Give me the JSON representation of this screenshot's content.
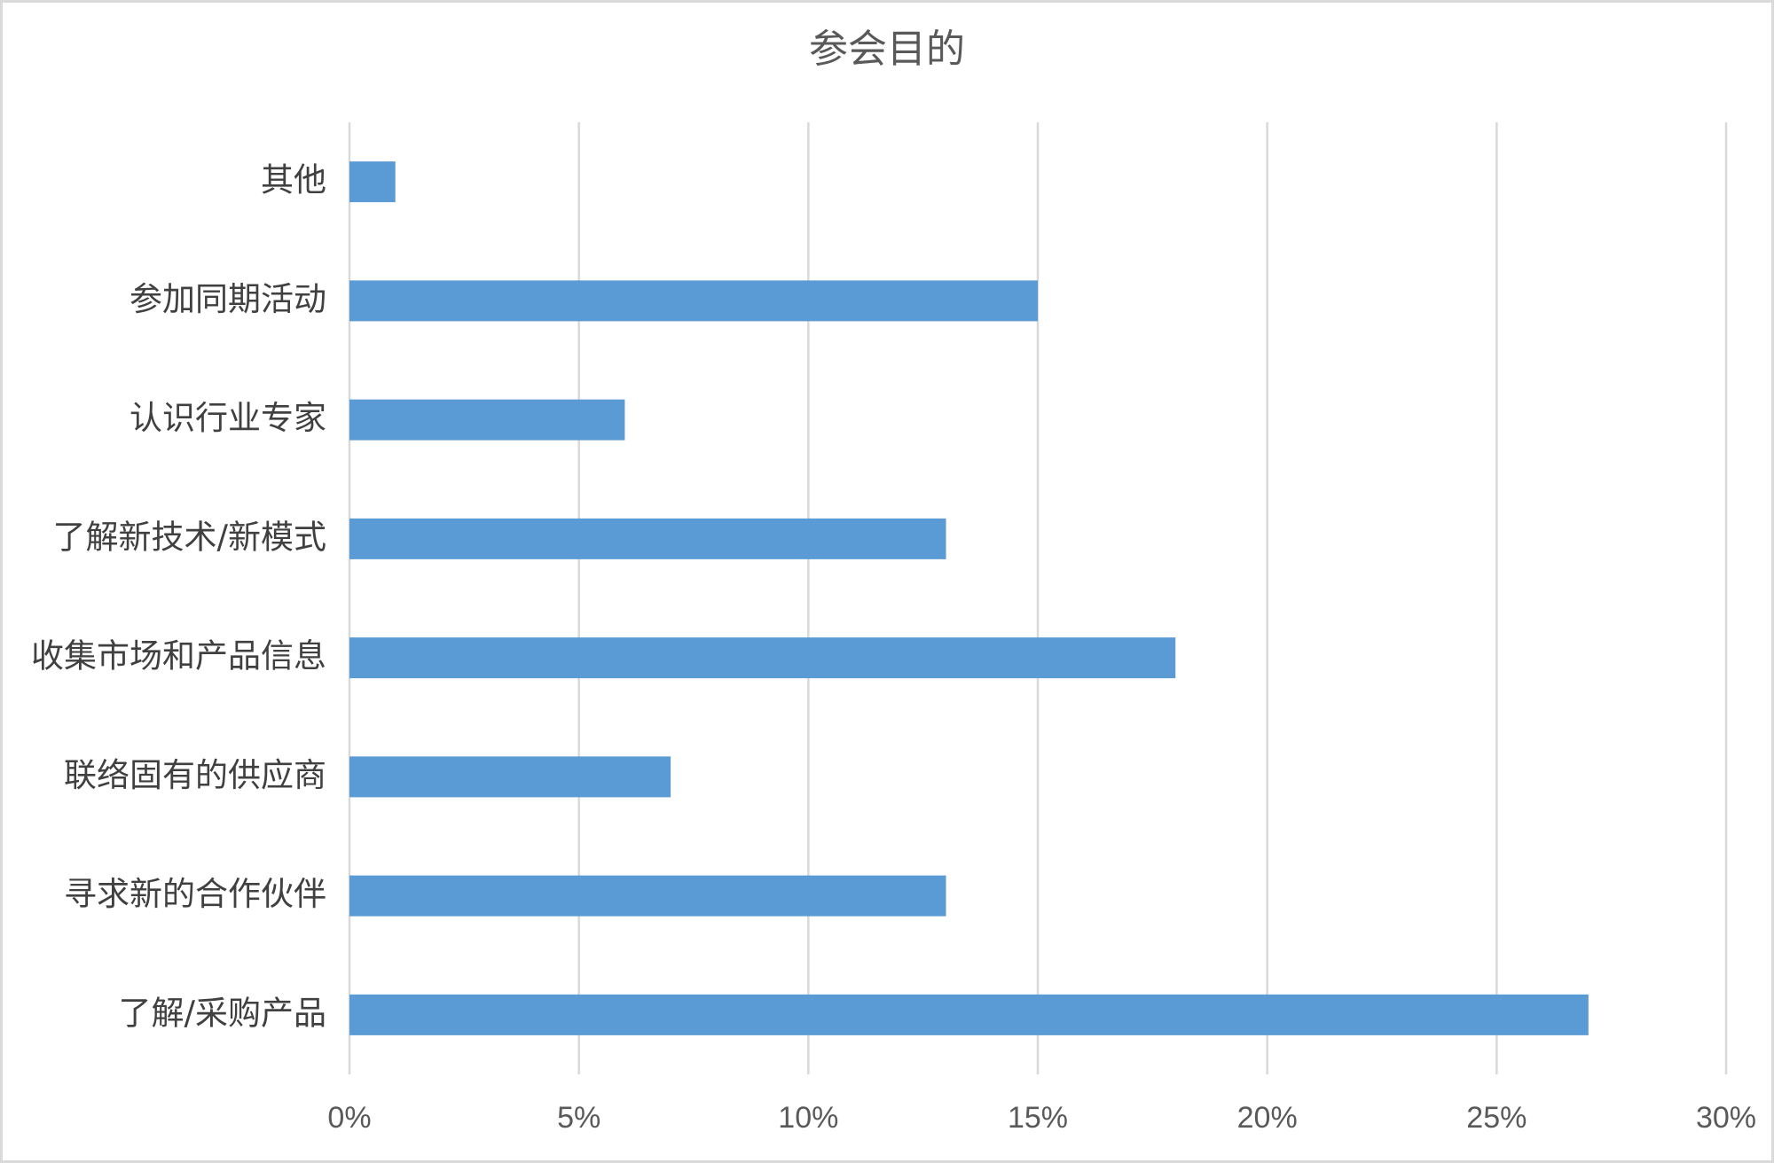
{
  "chart_data": {
    "type": "bar",
    "orientation": "horizontal",
    "title": "参会目的",
    "categories": [
      "其他",
      "参加同期活动",
      "认识行业专家",
      "了解新技术/新模式",
      "收集市场和产品信息",
      "联络固有的供应商",
      "寻求新的合作伙伴",
      "了解/采购产品"
    ],
    "values": [
      1,
      15,
      6,
      13,
      18,
      7,
      13,
      27
    ],
    "value_unit": "%",
    "xlim": [
      0,
      30
    ],
    "x_ticks": [
      0,
      5,
      10,
      15,
      20,
      25,
      30
    ],
    "x_tick_labels": [
      "0%",
      "5%",
      "10%",
      "15%",
      "20%",
      "25%",
      "30%"
    ],
    "grid": "vertical",
    "legend": "none",
    "bar_color": "#5b9bd5"
  }
}
